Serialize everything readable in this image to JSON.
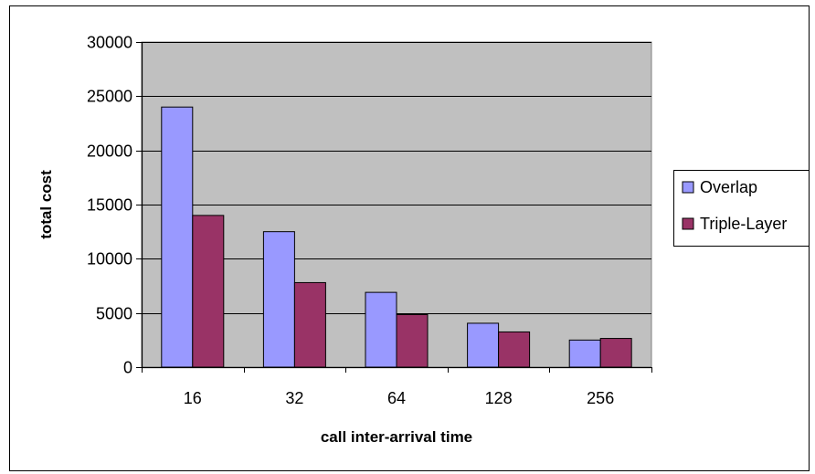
{
  "chart_data": {
    "type": "bar",
    "title": "",
    "xlabel": "call inter-arrival time",
    "ylabel": "total cost",
    "categories": [
      "16",
      "32",
      "64",
      "128",
      "256"
    ],
    "series": [
      {
        "name": "Overlap",
        "color": "#9999ff",
        "values": [
          24000,
          12500,
          6900,
          4050,
          2500
        ]
      },
      {
        "name": "Triple-Layer",
        "color": "#993366",
        "values": [
          14000,
          7800,
          4850,
          3250,
          2650
        ]
      }
    ],
    "ylim": [
      0,
      30000
    ],
    "yticks": [
      "0",
      "5000",
      "10000",
      "15000",
      "20000",
      "25000",
      "30000"
    ],
    "grid": true,
    "plot_background": "#c0c0c0",
    "legend_position": "right"
  }
}
